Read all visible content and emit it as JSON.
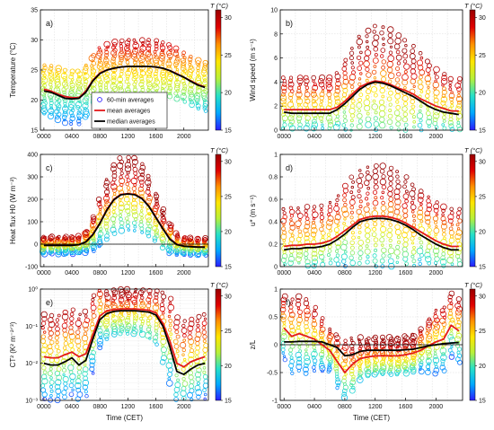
{
  "colors": {
    "mean": "#e41a1c",
    "median": "#000000",
    "grid": "#d9d9d9",
    "cmap": [
      "#2b1cff",
      "#00a8ff",
      "#27e0c8",
      "#b7f03a",
      "#ffe600",
      "#ff9000",
      "#e00000",
      "#9a0000"
    ]
  },
  "colorbar": {
    "title": "T (°C)",
    "range": [
      15,
      31
    ],
    "ticks": [
      "15",
      "20",
      "25",
      "30"
    ]
  },
  "time_ticks": [
    "0000",
    "0400",
    "0800",
    "1200",
    "1600",
    "2000"
  ],
  "legend": {
    "markers": "60-min averages",
    "mean": "mean averages",
    "median": "median averages"
  },
  "chart_data": [
    {
      "panel": "a)",
      "type": "scatter",
      "title": "",
      "xlabel": "",
      "ylabel": "Temperature (°C)",
      "ylim": [
        15,
        35
      ],
      "yscale": "linear",
      "yticks": [
        "15",
        "20",
        "25",
        "30",
        "35"
      ],
      "hline": null,
      "x": [
        0,
        1,
        2,
        3,
        4,
        5,
        6,
        7,
        8,
        9,
        10,
        11,
        12,
        13,
        14,
        15,
        16,
        17,
        18,
        19,
        20,
        21,
        22,
        23
      ],
      "series": [
        {
          "name": "mean averages",
          "values": [
            21.8,
            21.5,
            21.0,
            20.6,
            20.4,
            20.4,
            21.5,
            23.3,
            24.5,
            25.0,
            25.3,
            25.5,
            25.6,
            25.6,
            25.6,
            25.6,
            25.5,
            25.3,
            24.9,
            24.4,
            23.8,
            23.2,
            22.6,
            22.2
          ]
        },
        {
          "name": "median averages",
          "values": [
            21.5,
            21.3,
            20.8,
            20.3,
            20.2,
            20.3,
            21.3,
            23.2,
            24.4,
            25.0,
            25.3,
            25.5,
            25.6,
            25.6,
            25.6,
            25.6,
            25.5,
            25.3,
            24.9,
            24.3,
            23.8,
            23.1,
            22.5,
            22.1
          ]
        }
      ],
      "spread": [
        4.2,
        4.4,
        4.5,
        4.6,
        4.6,
        4.6,
        4.5,
        4.3,
        4.4,
        4.5,
        4.6,
        4.6,
        4.6,
        4.6,
        4.6,
        4.6,
        4.6,
        4.5,
        4.5,
        4.4,
        4.3,
        4.2,
        4.2,
        4.2
      ]
    },
    {
      "panel": "b)",
      "type": "scatter",
      "title": "",
      "xlabel": "",
      "ylabel": "Wind speed (m s⁻¹)",
      "ylim": [
        0,
        10
      ],
      "yscale": "linear",
      "yticks": [
        "0",
        "2",
        "4",
        "6",
        "8",
        "10"
      ],
      "hline": null,
      "x": [
        0,
        1,
        2,
        3,
        4,
        5,
        6,
        7,
        8,
        9,
        10,
        11,
        12,
        13,
        14,
        15,
        16,
        17,
        18,
        19,
        20,
        21,
        22,
        23
      ],
      "series": [
        {
          "name": "mean averages",
          "values": [
            1.7,
            1.7,
            1.7,
            1.7,
            1.7,
            1.7,
            1.7,
            1.9,
            2.4,
            3.0,
            3.6,
            3.9,
            4.1,
            4.0,
            3.8,
            3.5,
            3.3,
            3.0,
            2.6,
            2.3,
            2.0,
            1.8,
            1.6,
            1.6
          ]
        },
        {
          "name": "median averages",
          "values": [
            1.5,
            1.4,
            1.4,
            1.4,
            1.4,
            1.4,
            1.4,
            1.7,
            2.2,
            2.8,
            3.4,
            3.8,
            4.0,
            3.9,
            3.7,
            3.4,
            3.1,
            2.8,
            2.4,
            2.0,
            1.7,
            1.5,
            1.4,
            1.3
          ]
        }
      ],
      "spread": [
        2.8,
        2.8,
        2.8,
        2.8,
        2.8,
        2.8,
        2.8,
        3.0,
        3.6,
        4.0,
        4.4,
        4.6,
        4.8,
        4.8,
        4.8,
        4.6,
        4.4,
        4.2,
        4.0,
        3.6,
        3.2,
        3.0,
        2.8,
        2.8
      ]
    },
    {
      "panel": "c)",
      "type": "scatter",
      "title": "",
      "xlabel": "",
      "ylabel": "Heat flux H0 (W m⁻²)",
      "ylim": [
        -100,
        400
      ],
      "yscale": "linear",
      "yticks": [
        "-100",
        "0",
        "100",
        "200",
        "300",
        "400"
      ],
      "hline": 0,
      "x": [
        0,
        1,
        2,
        3,
        4,
        5,
        6,
        7,
        8,
        9,
        10,
        11,
        12,
        13,
        14,
        15,
        16,
        17,
        18,
        19,
        20,
        21,
        22,
        23
      ],
      "series": [
        {
          "name": "mean averages",
          "values": [
            -5,
            -5,
            -5,
            -5,
            -5,
            -2,
            10,
            45,
            95,
            155,
            200,
            222,
            225,
            222,
            205,
            170,
            120,
            70,
            25,
            0,
            -8,
            -10,
            -12,
            -12
          ]
        },
        {
          "name": "median averages",
          "values": [
            -5,
            -5,
            -5,
            -5,
            -5,
            -2,
            10,
            42,
            92,
            152,
            198,
            220,
            224,
            220,
            203,
            168,
            118,
            68,
            22,
            -2,
            -9,
            -11,
            -13,
            -13
          ]
        }
      ],
      "spread": [
        40,
        40,
        40,
        40,
        40,
        40,
        50,
        80,
        110,
        140,
        160,
        170,
        170,
        170,
        160,
        140,
        110,
        90,
        70,
        50,
        40,
        40,
        40,
        40
      ]
    },
    {
      "panel": "d)",
      "type": "scatter",
      "title": "",
      "xlabel": "",
      "ylabel": "u* (m s⁻¹)",
      "ylim": [
        0,
        1
      ],
      "yscale": "linear",
      "yticks": [
        "0",
        "0.2",
        "0.4",
        "0.6",
        "0.8",
        "1"
      ],
      "hline": null,
      "x": [
        0,
        1,
        2,
        3,
        4,
        5,
        6,
        7,
        8,
        9,
        10,
        11,
        12,
        13,
        14,
        15,
        16,
        17,
        18,
        19,
        20,
        21,
        22,
        23
      ],
      "series": [
        {
          "name": "mean averages",
          "values": [
            0.18,
            0.19,
            0.19,
            0.2,
            0.2,
            0.21,
            0.23,
            0.27,
            0.32,
            0.37,
            0.42,
            0.44,
            0.45,
            0.45,
            0.44,
            0.42,
            0.39,
            0.35,
            0.31,
            0.27,
            0.23,
            0.2,
            0.18,
            0.18
          ]
        },
        {
          "name": "median averages",
          "values": [
            0.15,
            0.16,
            0.16,
            0.17,
            0.17,
            0.18,
            0.2,
            0.24,
            0.29,
            0.35,
            0.4,
            0.42,
            0.43,
            0.43,
            0.42,
            0.4,
            0.37,
            0.33,
            0.28,
            0.24,
            0.2,
            0.17,
            0.15,
            0.15
          ]
        }
      ],
      "spread": [
        0.35,
        0.35,
        0.35,
        0.35,
        0.35,
        0.35,
        0.36,
        0.38,
        0.42,
        0.45,
        0.46,
        0.47,
        0.47,
        0.47,
        0.46,
        0.45,
        0.43,
        0.4,
        0.38,
        0.37,
        0.36,
        0.35,
        0.35,
        0.35
      ]
    },
    {
      "panel": "e)",
      "type": "scatter",
      "title": "",
      "xlabel": "Time (CET)",
      "ylabel": "CT² (K² m⁻²ᐟ³)",
      "ylim": [
        0.001,
        1
      ],
      "yscale": "log",
      "yticks": [
        "10⁻³",
        "10⁻²",
        "10⁻¹",
        "10⁰"
      ],
      "hline": null,
      "x": [
        0,
        1,
        2,
        3,
        4,
        5,
        6,
        7,
        8,
        9,
        10,
        11,
        12,
        13,
        14,
        15,
        16,
        17,
        18,
        19,
        20,
        21,
        22,
        23
      ],
      "series": [
        {
          "name": "mean averages",
          "values": [
            0.015,
            0.014,
            0.014,
            0.017,
            0.02,
            0.015,
            0.018,
            0.06,
            0.19,
            0.26,
            0.28,
            0.29,
            0.29,
            0.29,
            0.28,
            0.27,
            0.23,
            0.12,
            0.04,
            0.01,
            0.008,
            0.011,
            0.013,
            0.015
          ]
        },
        {
          "name": "median averages",
          "values": [
            0.01,
            0.009,
            0.009,
            0.011,
            0.014,
            0.009,
            0.012,
            0.045,
            0.15,
            0.22,
            0.25,
            0.26,
            0.26,
            0.26,
            0.25,
            0.24,
            0.2,
            0.1,
            0.028,
            0.006,
            0.005,
            0.007,
            0.009,
            0.01
          ]
        }
      ],
      "spread": [
        1.2,
        1.2,
        1.2,
        1.2,
        1.2,
        1.2,
        1.2,
        1.1,
        0.9,
        0.8,
        0.7,
        0.7,
        0.7,
        0.7,
        0.7,
        0.8,
        0.9,
        1.1,
        1.2,
        1.3,
        1.3,
        1.2,
        1.2,
        1.2
      ]
    },
    {
      "panel": "f)",
      "type": "scatter",
      "title": "",
      "xlabel": "Time (CET)",
      "ylabel": "z/L",
      "ylim": [
        -1,
        1
      ],
      "yscale": "linear",
      "yticks": [
        "-1",
        "-0.5",
        "0",
        "0.5",
        "1"
      ],
      "hline": 0,
      "x": [
        0,
        1,
        2,
        3,
        4,
        5,
        6,
        7,
        8,
        9,
        10,
        11,
        12,
        13,
        14,
        15,
        16,
        17,
        18,
        19,
        20,
        21,
        22,
        23
      ],
      "series": [
        {
          "name": "mean averages",
          "values": [
            0.3,
            0.15,
            0.2,
            0.15,
            0.1,
            0.0,
            -0.1,
            -0.3,
            -0.5,
            -0.35,
            -0.25,
            -0.22,
            -0.2,
            -0.2,
            -0.2,
            -0.2,
            -0.18,
            -0.15,
            -0.1,
            -0.02,
            0.05,
            0.1,
            0.35,
            0.25
          ]
        },
        {
          "name": "median averages",
          "values": [
            0.05,
            0.05,
            0.06,
            0.06,
            0.06,
            0.05,
            0.0,
            -0.05,
            -0.2,
            -0.18,
            -0.12,
            -0.1,
            -0.1,
            -0.1,
            -0.1,
            -0.1,
            -0.09,
            -0.08,
            -0.05,
            -0.02,
            0.0,
            0.02,
            0.03,
            0.04
          ]
        }
      ],
      "spread": [
        0.6,
        0.7,
        0.7,
        0.7,
        0.6,
        0.5,
        0.4,
        0.5,
        0.6,
        0.5,
        0.4,
        0.35,
        0.35,
        0.35,
        0.35,
        0.35,
        0.35,
        0.35,
        0.4,
        0.5,
        0.6,
        0.6,
        0.6,
        0.6
      ]
    }
  ]
}
